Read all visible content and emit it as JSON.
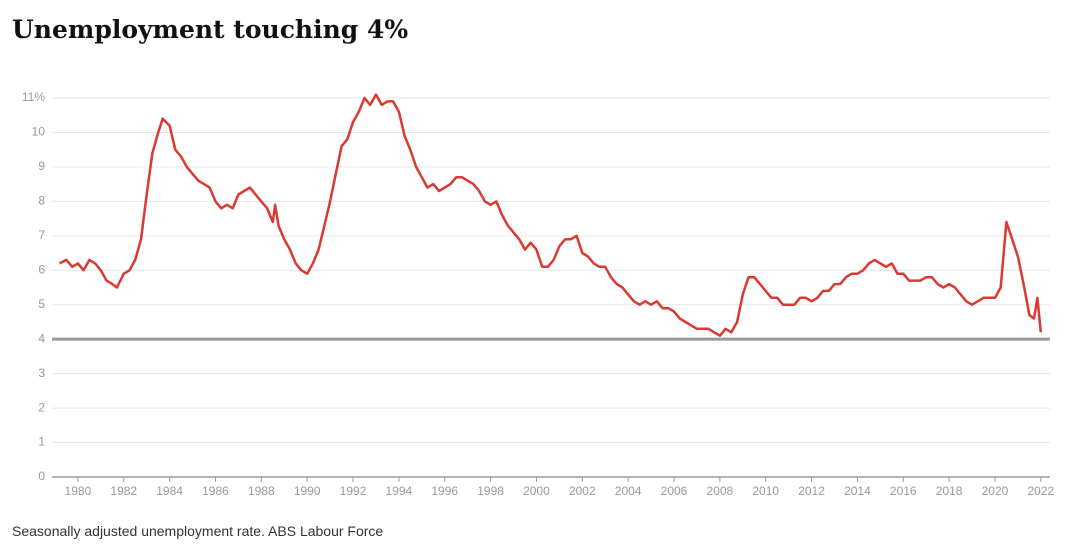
{
  "chart_data": {
    "type": "line",
    "title": "Unemployment touching 4%",
    "caption": "Seasonally adjusted unemployment rate. ABS Labour Force",
    "x": [
      1979.2,
      1979.5,
      1979.75,
      1980,
      1980.25,
      1980.5,
      1980.75,
      1981,
      1981.25,
      1981.5,
      1981.7,
      1982,
      1982.25,
      1982.5,
      1982.75,
      1983,
      1983.25,
      1983.5,
      1983.7,
      1984,
      1984.25,
      1984.5,
      1984.75,
      1985,
      1985.25,
      1985.5,
      1985.75,
      1986,
      1986.25,
      1986.5,
      1986.75,
      1987,
      1987.25,
      1987.5,
      1987.75,
      1988,
      1988.25,
      1988.5,
      1988.6,
      1988.75,
      1989,
      1989.25,
      1989.5,
      1989.75,
      1990,
      1990.25,
      1990.5,
      1990.75,
      1991,
      1991.25,
      1991.5,
      1991.75,
      1992,
      1992.25,
      1992.5,
      1992.75,
      1993,
      1993.25,
      1993.5,
      1993.75,
      1994,
      1994.25,
      1994.5,
      1994.75,
      1995,
      1995.25,
      1995.5,
      1995.75,
      1996,
      1996.25,
      1996.5,
      1996.75,
      1997,
      1997.25,
      1997.5,
      1997.75,
      1998,
      1998.25,
      1998.5,
      1998.75,
      1999,
      1999.25,
      1999.5,
      1999.75,
      2000,
      2000.25,
      2000.5,
      2000.75,
      2001,
      2001.25,
      2001.5,
      2001.75,
      2002,
      2002.25,
      2002.5,
      2002.75,
      2003,
      2003.25,
      2003.5,
      2003.75,
      2004,
      2004.25,
      2004.5,
      2004.75,
      2005,
      2005.25,
      2005.5,
      2005.75,
      2006,
      2006.25,
      2006.5,
      2006.75,
      2007,
      2007.25,
      2007.5,
      2007.75,
      2008,
      2008.25,
      2008.5,
      2008.75,
      2009,
      2009.25,
      2009.5,
      2009.75,
      2010,
      2010.25,
      2010.5,
      2010.75,
      2011,
      2011.25,
      2011.5,
      2011.75,
      2012,
      2012.25,
      2012.5,
      2012.75,
      2013,
      2013.25,
      2013.5,
      2013.75,
      2014,
      2014.25,
      2014.5,
      2014.75,
      2015,
      2015.25,
      2015.5,
      2015.75,
      2016,
      2016.25,
      2016.5,
      2016.75,
      2017,
      2017.25,
      2017.5,
      2017.75,
      2018,
      2018.25,
      2018.5,
      2018.75,
      2019,
      2019.25,
      2019.5,
      2019.75,
      2020,
      2020.25,
      2020.5,
      2020.75,
      2021,
      2021.25,
      2021.5,
      2021.7,
      2021.85,
      2022
    ],
    "series": [
      {
        "color": "#d93a32",
        "values": [
          6.2,
          6.3,
          6.1,
          6.2,
          6.0,
          6.3,
          6.2,
          6.0,
          5.7,
          5.6,
          5.5,
          5.9,
          6.0,
          6.3,
          6.9,
          8.2,
          9.4,
          10.0,
          10.4,
          10.2,
          9.5,
          9.3,
          9.0,
          8.8,
          8.6,
          8.5,
          8.4,
          8.0,
          7.8,
          7.9,
          7.8,
          8.2,
          8.3,
          8.4,
          8.2,
          8.0,
          7.8,
          7.4,
          7.9,
          7.3,
          6.9,
          6.6,
          6.2,
          6.0,
          5.9,
          6.2,
          6.6,
          7.3,
          8.0,
          8.8,
          9.6,
          9.8,
          10.3,
          10.6,
          11.0,
          10.8,
          11.1,
          10.8,
          10.9,
          10.9,
          10.6,
          9.9,
          9.5,
          9.0,
          8.7,
          8.4,
          8.5,
          8.3,
          8.4,
          8.5,
          8.7,
          8.7,
          8.6,
          8.5,
          8.3,
          8.0,
          7.9,
          8.0,
          7.6,
          7.3,
          7.1,
          6.9,
          6.6,
          6.8,
          6.6,
          6.1,
          6.1,
          6.3,
          6.7,
          6.9,
          6.9,
          7.0,
          6.5,
          6.4,
          6.2,
          6.1,
          6.1,
          5.8,
          5.6,
          5.5,
          5.3,
          5.1,
          5.0,
          5.1,
          5.0,
          5.1,
          4.9,
          4.9,
          4.8,
          4.6,
          4.5,
          4.4,
          4.3,
          4.3,
          4.3,
          4.2,
          4.1,
          4.3,
          4.2,
          4.5,
          5.3,
          5.8,
          5.8,
          5.6,
          5.4,
          5.2,
          5.2,
          5.0,
          5.0,
          5.0,
          5.2,
          5.2,
          5.1,
          5.2,
          5.4,
          5.4,
          5.6,
          5.6,
          5.8,
          5.9,
          5.9,
          6.0,
          6.2,
          6.3,
          6.2,
          6.1,
          6.2,
          5.9,
          5.9,
          5.7,
          5.7,
          5.7,
          5.8,
          5.8,
          5.6,
          5.5,
          5.6,
          5.5,
          5.3,
          5.1,
          5.0,
          5.1,
          5.2,
          5.2,
          5.2,
          5.5,
          7.4,
          6.9,
          6.4,
          5.6,
          4.7,
          4.6,
          5.2,
          4.2
        ]
      }
    ],
    "hline": 4,
    "xlim": [
      1978.87,
      2022.4
    ],
    "xticks": [
      1980,
      1982,
      1984,
      1986,
      1988,
      1990,
      1992,
      1994,
      1996,
      1998,
      2000,
      2002,
      2004,
      2006,
      2008,
      2010,
      2012,
      2014,
      2016,
      2018,
      2020,
      2022
    ],
    "ylim": [
      0,
      11
    ],
    "yticks": [
      0,
      1,
      2,
      3,
      4,
      5,
      6,
      7,
      8,
      9,
      10,
      {
        "value": 11,
        "label": "11%"
      }
    ],
    "grid": true
  }
}
